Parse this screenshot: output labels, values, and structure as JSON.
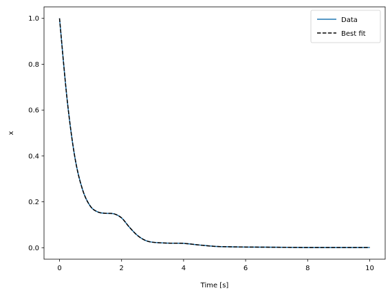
{
  "chart_data": {
    "type": "line",
    "title": "",
    "xlabel": "Time [s]",
    "ylabel": "x",
    "xlim": [
      -0.5,
      10.5
    ],
    "ylim": [
      -0.05,
      1.05
    ],
    "xticks": [
      0,
      2,
      4,
      6,
      8,
      10
    ],
    "yticks": [
      0.0,
      0.2,
      0.4,
      0.6,
      0.8,
      1.0
    ],
    "xtick_labels": [
      "0",
      "2",
      "4",
      "6",
      "8",
      "10"
    ],
    "ytick_labels": [
      "0.0",
      "0.2",
      "0.4",
      "0.6",
      "0.8",
      "1.0"
    ],
    "grid": false,
    "legend": {
      "placement": "top-right"
    },
    "series": [
      {
        "name": "Data",
        "color": "#1f77b4",
        "style": "solid",
        "x": [
          0,
          0.25,
          0.5,
          0.75,
          1.0,
          1.25,
          1.5,
          1.75,
          2.0,
          2.25,
          2.5,
          2.75,
          3.0,
          3.5,
          4.0,
          4.5,
          5.0,
          5.5,
          6.0,
          7.0,
          8.0,
          9.0,
          10.0
        ],
        "y": [
          1.0,
          0.64,
          0.39,
          0.25,
          0.18,
          0.155,
          0.15,
          0.148,
          0.13,
          0.09,
          0.055,
          0.033,
          0.024,
          0.02,
          0.019,
          0.012,
          0.006,
          0.004,
          0.003,
          0.002,
          0.001,
          0.001,
          0.001
        ]
      },
      {
        "name": "Best fit",
        "color": "#000000",
        "style": "dashed",
        "x": [
          0,
          0.25,
          0.5,
          0.75,
          1.0,
          1.25,
          1.5,
          1.75,
          2.0,
          2.25,
          2.5,
          2.75,
          3.0,
          3.5,
          4.0,
          4.5,
          5.0,
          5.5,
          6.0,
          7.0,
          8.0,
          9.0,
          10.0
        ],
        "y": [
          1.0,
          0.64,
          0.39,
          0.25,
          0.18,
          0.155,
          0.15,
          0.148,
          0.13,
          0.09,
          0.055,
          0.033,
          0.024,
          0.02,
          0.019,
          0.012,
          0.006,
          0.004,
          0.003,
          0.002,
          0.001,
          0.001,
          0.001
        ]
      }
    ]
  }
}
